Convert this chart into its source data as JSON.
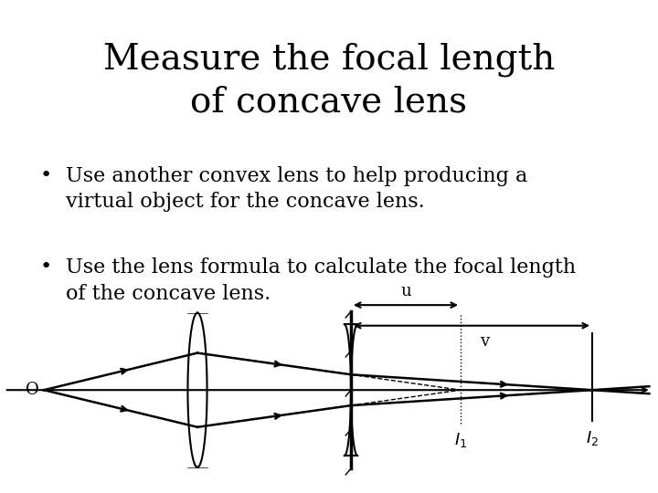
{
  "title": "Measure the focal length\nof concave lens",
  "title_fontsize": 28,
  "bullet1": "Use another convex lens to help producing a\nvirtual object for the concave lens.",
  "bullet2": "Use the lens formula to calculate the focal length\nof the concave lens.",
  "bullet_fontsize": 16,
  "bg_color": "#f0f0f0",
  "text_color": "#000000",
  "diagram": {
    "optical_axis_y": 0.0,
    "convex_lens_x": -3.5,
    "concave_lens_x": 0.0,
    "I1_x": 2.5,
    "I2_x": 5.5,
    "O_x": -7.0,
    "lens_height": 1.5,
    "xlim": [
      -8,
      7
    ],
    "ylim": [
      -2.0,
      2.5
    ]
  }
}
